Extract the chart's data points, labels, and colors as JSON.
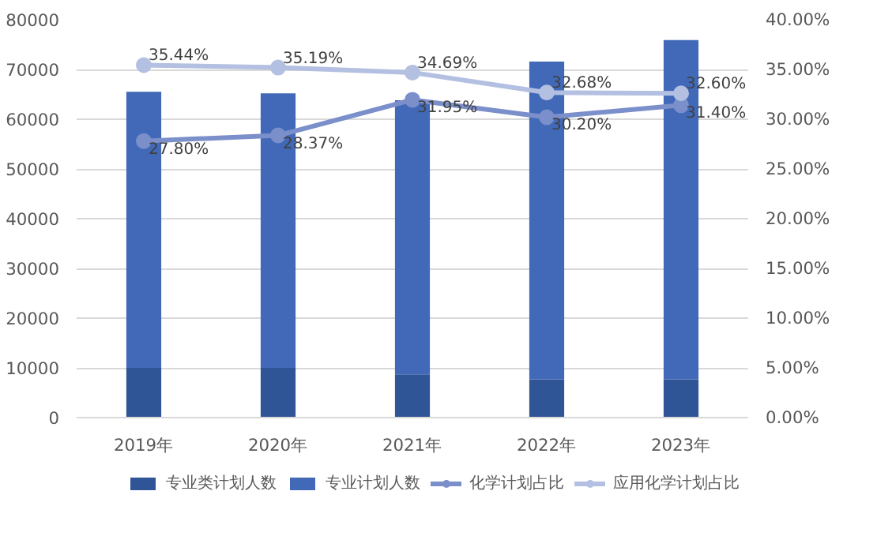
{
  "chart_data": {
    "type": "bar",
    "stacked": true,
    "categories": [
      "2019年",
      "2020年",
      "2021年",
      "2022年",
      "2023年"
    ],
    "ylim": [
      0,
      80000
    ],
    "yticks": [
      0,
      10000,
      20000,
      30000,
      40000,
      50000,
      60000,
      70000,
      80000
    ],
    "y2lim": [
      0,
      40
    ],
    "y2ticks": [
      {
        "value": 0,
        "label": "0.00%"
      },
      {
        "value": 5,
        "label": "5.00%"
      },
      {
        "value": 10,
        "label": "10.00%"
      },
      {
        "value": 15,
        "label": "15.00%"
      },
      {
        "value": 20,
        "label": "20.00%"
      },
      {
        "value": 25,
        "label": "25.00%"
      },
      {
        "value": 30,
        "label": "30.00%"
      },
      {
        "value": 35,
        "label": "35.00%"
      },
      {
        "value": 40,
        "label": "40.00%"
      }
    ],
    "grid": "y",
    "legend": "bottom",
    "marker": "circle",
    "series": [
      {
        "name": "专业类计划人数",
        "color": "#2f5597",
        "values": [
          10000,
          10000,
          8700,
          7700,
          7700
        ]
      },
      {
        "name": "专业计划人数",
        "color": "#4169b8",
        "values": [
          55500,
          55200,
          55100,
          63900,
          68200
        ]
      },
      {
        "name": "化学计划占比",
        "type": "line",
        "axis": "y2",
        "color": "#7b8fca",
        "values": [
          27.8,
          28.37,
          31.95,
          30.2,
          31.4
        ],
        "value_labels": [
          "27.80%",
          "28.37%",
          "31.95%",
          "30.20%",
          "31.40%"
        ]
      },
      {
        "name": "应用化学计划占比",
        "type": "line",
        "axis": "y2",
        "color": "#b4c0e2",
        "values": [
          35.44,
          35.19,
          34.69,
          32.68,
          32.6
        ],
        "value_labels": [
          "35.44%",
          "35.19%",
          "34.69%",
          "32.68%",
          "32.60%"
        ]
      }
    ]
  }
}
